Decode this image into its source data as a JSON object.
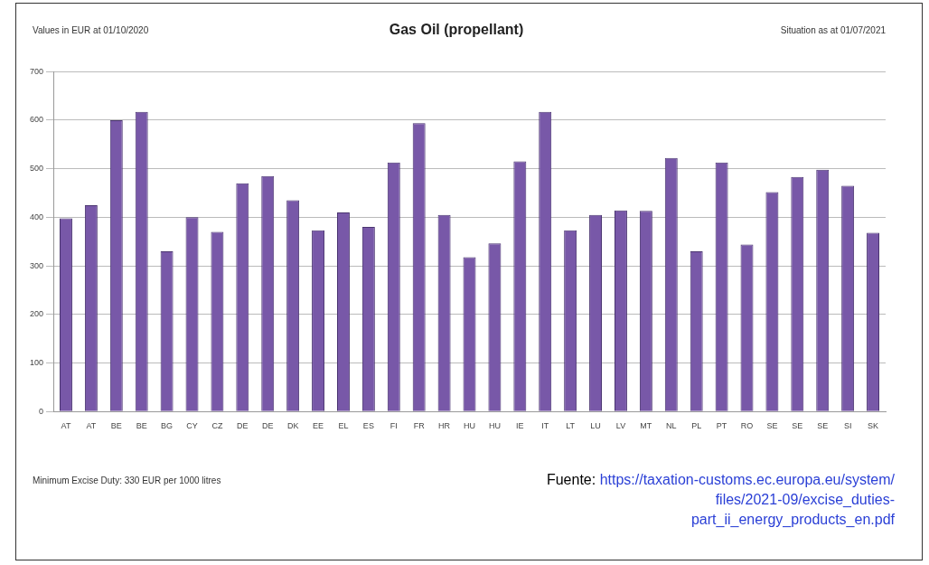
{
  "chart_data": {
    "type": "bar",
    "title": "Gas Oil (propellant)",
    "categories": [
      "AT",
      "AT",
      "BE",
      "BE",
      "BG",
      "CY",
      "CZ",
      "DE",
      "DE",
      "DK",
      "EE",
      "EL",
      "ES",
      "FI",
      "FR",
      "HR",
      "HU",
      "HU",
      "IE",
      "IT",
      "LT",
      "LU",
      "LV",
      "MT",
      "NL",
      "PL",
      "PT",
      "RO",
      "SE",
      "SE",
      "SE",
      "SI",
      "SK"
    ],
    "values": [
      398,
      425,
      600,
      617,
      330,
      400,
      370,
      470,
      485,
      435,
      373,
      410,
      380,
      513,
      594,
      405,
      318,
      346,
      515,
      617,
      373,
      405,
      414,
      413,
      522,
      330,
      513,
      344,
      452,
      483,
      498,
      465,
      368
    ],
    "color": "#7858a8",
    "ylim": [
      0,
      700
    ],
    "yticks": [
      0,
      100,
      200,
      300,
      400,
      500,
      600,
      700
    ],
    "grid": "y",
    "annotations": [
      "Values in EUR at 01/10/2020",
      "Situation as at 01/07/2021",
      "Minimum Excise Duty: 330 EUR per 1000 litres",
      "Fuente: https://taxation-customs.ec.europa.eu/system/files/2021-09/excise_duties-part_ii_energy_products_en.pdf"
    ]
  }
}
